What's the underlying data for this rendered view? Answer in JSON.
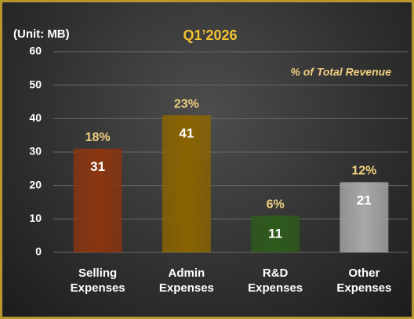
{
  "chart_data": {
    "type": "bar",
    "title": "Q1’2026",
    "unit_label": "(Unit: MB)",
    "annotation": "% of Total Revenue",
    "categories": [
      "Selling Expenses",
      "Admin Expenses",
      "R&D Expenses",
      "Other Expenses"
    ],
    "values": [
      31,
      41,
      11,
      21
    ],
    "percent_labels": [
      "18%",
      "23%",
      "6%",
      "12%"
    ],
    "colors": [
      "#8a3510",
      "#8a6400",
      "#2e5a1c",
      "#a8a8a8"
    ],
    "ylim": [
      0,
      60
    ],
    "yticks": [
      0,
      10,
      20,
      30,
      40,
      50,
      60
    ],
    "grid": true
  }
}
